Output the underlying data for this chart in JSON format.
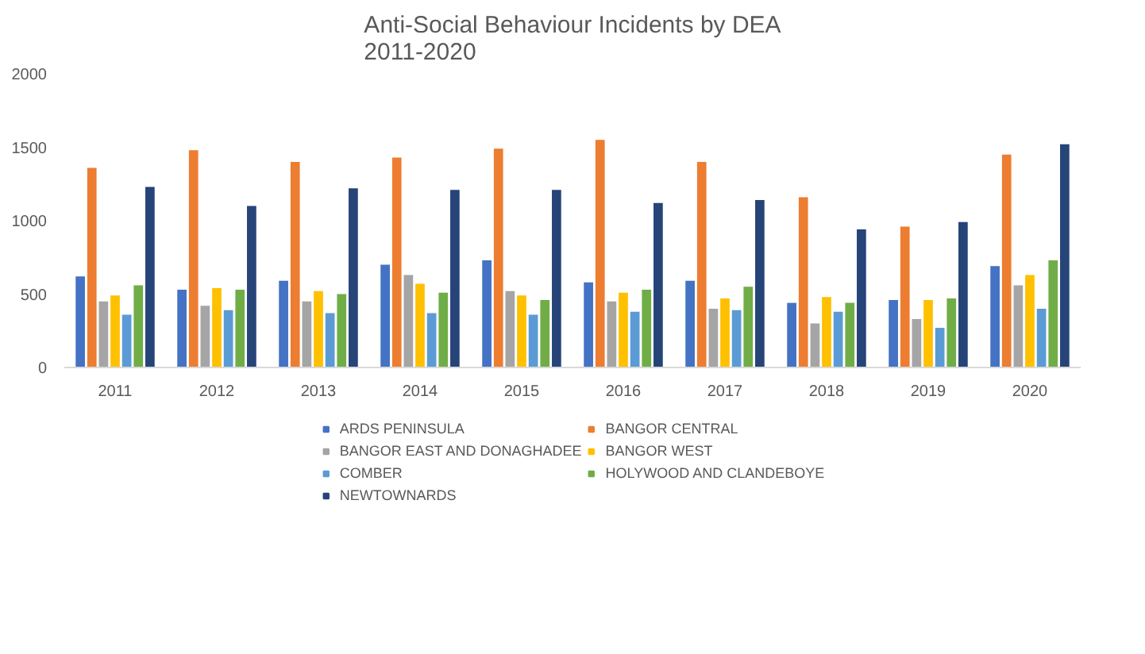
{
  "chart_data": {
    "type": "bar",
    "title": "Anti-Social Behaviour Incidents by DEA\n2011-2020",
    "categories": [
      "2011",
      "2012",
      "2013",
      "2014",
      "2015",
      "2016",
      "2017",
      "2018",
      "2019",
      "2020"
    ],
    "ylim": [
      0,
      2000
    ],
    "yticks": [
      0,
      500,
      1000,
      1500,
      2000
    ],
    "grid": false,
    "legend": "bottom",
    "series": [
      {
        "name": "ARDS PENINSULA",
        "color": "#4472c4",
        "values": [
          620,
          530,
          590,
          700,
          730,
          580,
          590,
          440,
          460,
          690
        ]
      },
      {
        "name": "BANGOR CENTRAL",
        "color": "#ed7d31",
        "values": [
          1360,
          1480,
          1400,
          1430,
          1490,
          1550,
          1400,
          1160,
          960,
          1450
        ]
      },
      {
        "name": "BANGOR EAST AND DONAGHADEE",
        "color": "#a5a5a5",
        "values": [
          450,
          420,
          450,
          630,
          520,
          450,
          400,
          300,
          330,
          560
        ]
      },
      {
        "name": "BANGOR WEST",
        "color": "#ffc000",
        "values": [
          490,
          540,
          520,
          570,
          490,
          510,
          470,
          480,
          460,
          630
        ]
      },
      {
        "name": "COMBER",
        "color": "#5b9bd5",
        "values": [
          360,
          390,
          370,
          370,
          360,
          380,
          390,
          380,
          270,
          400
        ]
      },
      {
        "name": "HOLYWOOD AND CLANDEBOYE",
        "color": "#70ad47",
        "values": [
          560,
          530,
          500,
          510,
          460,
          530,
          550,
          440,
          470,
          730
        ]
      },
      {
        "name": "NEWTOWNARDS",
        "color": "#264478",
        "values": [
          1230,
          1100,
          1220,
          1210,
          1210,
          1120,
          1140,
          940,
          990,
          1520
        ]
      }
    ]
  }
}
